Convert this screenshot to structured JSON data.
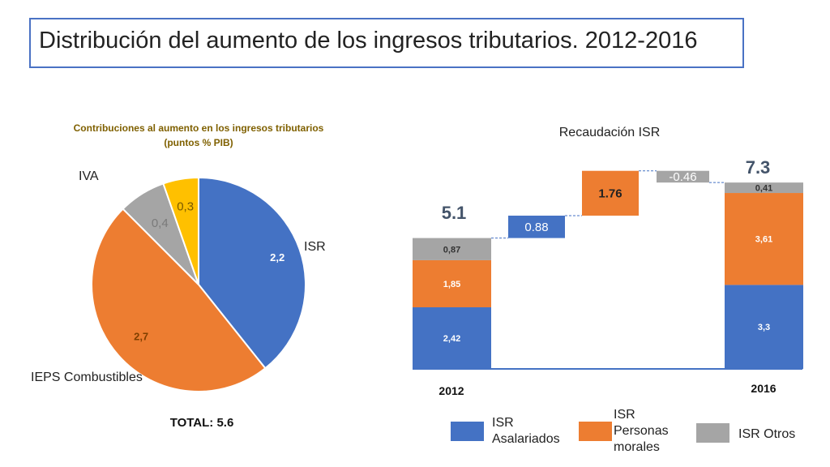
{
  "title": "Distribución del aumento de los ingresos tributarios. 2012-2016",
  "colors": {
    "blue": "#4472C4",
    "orange": "#ED7D31",
    "gray": "#A5A5A5",
    "yellow": "#FFC000",
    "title_border": "#4a72c4"
  },
  "chart_data": [
    {
      "type": "pie",
      "title": "Contribuciones al aumento  en los ingresos tributarios",
      "subtitle": "(puntos % PIB)",
      "slices": [
        {
          "name": "ISR",
          "value": 2.2,
          "value_label": "2,2",
          "color": "#4472C4"
        },
        {
          "name": "IEPS Combustibles",
          "value": 2.7,
          "value_label": "2,7",
          "color": "#ED7D31"
        },
        {
          "name": "",
          "value": 0.4,
          "value_label": "0,4",
          "color": "#A5A5A5"
        },
        {
          "name": "IVA",
          "value": 0.3,
          "value_label": "0,3",
          "color": "#FFC000"
        }
      ],
      "total_label": "TOTAL: 5.6"
    },
    {
      "type": "bar",
      "subtype": "waterfall",
      "title": "Recaudación ISR",
      "categories": [
        "2012",
        "",
        "",
        "",
        "2016"
      ],
      "series": [
        {
          "name": "ISR Asalariados",
          "color": "#4472C4",
          "values": [
            2.42,
            null,
            null,
            null,
            3.3
          ],
          "labels": [
            "2,42",
            "",
            "",
            "",
            "3,3"
          ]
        },
        {
          "name": "ISR Personas morales",
          "color": "#ED7D31",
          "values": [
            1.85,
            null,
            null,
            null,
            3.61
          ],
          "labels": [
            "1,85",
            "",
            "",
            "",
            "3,61"
          ]
        },
        {
          "name": "ISR Otros",
          "color": "#A5A5A5",
          "values": [
            0.87,
            null,
            null,
            null,
            0.41
          ],
          "labels": [
            "0,87",
            "",
            "",
            "",
            "0,41"
          ]
        }
      ],
      "changes": [
        {
          "value": 0.88,
          "label": "0.88",
          "color": "#4472C4"
        },
        {
          "value": 1.76,
          "label": "1.76",
          "color": "#ED7D31"
        },
        {
          "value": -0.46,
          "label": "-0.46",
          "color": "#A5A5A5"
        }
      ],
      "totals": [
        {
          "label": "5.1",
          "value": 5.1
        },
        {
          "label": "7.3",
          "value": 7.3
        }
      ],
      "legend": [
        "ISR Asalariados",
        "ISR Personas morales",
        "ISR Otros"
      ],
      "legend_placement": "bottom"
    }
  ]
}
